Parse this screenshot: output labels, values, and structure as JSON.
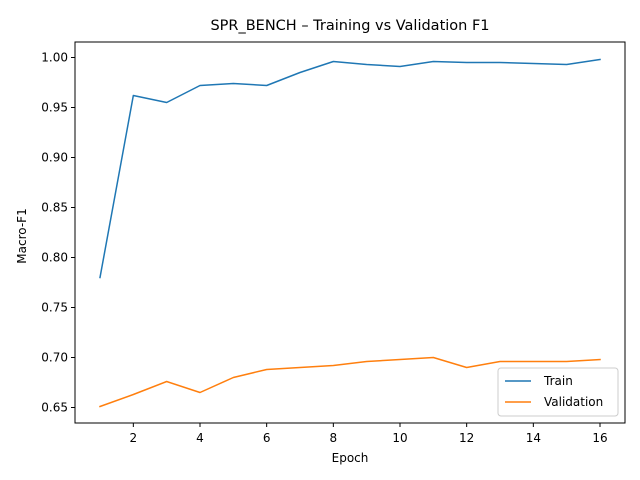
{
  "chart_data": {
    "type": "line",
    "title": "SPR_BENCH – Training vs Validation F1",
    "xlabel": "Epoch",
    "ylabel": "Macro-F1",
    "xlim": [
      0.25,
      16.75
    ],
    "ylim": [
      0.6345,
      1.0155
    ],
    "xticks": [
      2,
      4,
      6,
      8,
      10,
      12,
      14,
      16
    ],
    "yticks": [
      0.65,
      0.7,
      0.75,
      0.8,
      0.85,
      0.9,
      0.95,
      1.0
    ],
    "ytick_labels": [
      "0.65",
      "0.70",
      "0.75",
      "0.80",
      "0.85",
      "0.90",
      "0.95",
      "1.00"
    ],
    "grid": false,
    "legend_position": "lower right",
    "x": [
      1,
      2,
      3,
      4,
      5,
      6,
      7,
      8,
      9,
      10,
      11,
      12,
      13,
      14,
      15,
      16
    ],
    "series": [
      {
        "name": "Train",
        "color": "#1f77b4",
        "values": [
          0.78,
          0.962,
          0.955,
          0.972,
          0.974,
          0.972,
          0.985,
          0.996,
          0.993,
          0.991,
          0.996,
          0.995,
          0.995,
          0.994,
          0.993,
          0.998
        ]
      },
      {
        "name": "Validation",
        "color": "#ff7f0e",
        "values": [
          0.651,
          0.663,
          0.676,
          0.665,
          0.68,
          0.688,
          0.69,
          0.692,
          0.696,
          0.698,
          0.7,
          0.69,
          0.696,
          0.696,
          0.696,
          0.698
        ]
      }
    ]
  }
}
